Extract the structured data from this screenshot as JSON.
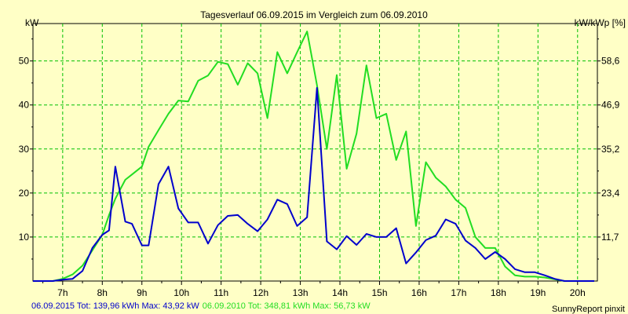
{
  "title": "Tagesverlauf 06.09.2015 im Vergleich zum 06.09.2010",
  "left_unit": "kW",
  "right_unit": "kW/kWp [%]",
  "footer": {
    "blue_text": "06.09.2015 Tot: 139,96 kWh Max: 43,92 kW",
    "green_text": "06.09.2010 Tot: 348,81 kWh Max: 56,73 kW",
    "credit": "SunnyReport pinxit"
  },
  "colors": {
    "background": "#ffffc6",
    "grid": "#00c000",
    "series_2015": "#0000cc",
    "series_2010": "#22dd22"
  },
  "chart_data": {
    "type": "line",
    "x_unit": "hour",
    "xlim": [
      6.25,
      20.5
    ],
    "ylim": [
      0,
      58.5
    ],
    "x_ticks": [
      7,
      8,
      9,
      10,
      11,
      12,
      13,
      14,
      15,
      16,
      17,
      18,
      19,
      20
    ],
    "x_tick_labels": [
      "7h",
      "8h",
      "9h",
      "10h",
      "11h",
      "12h",
      "13h",
      "14h",
      "15h",
      "16h",
      "17h",
      "18h",
      "19h",
      "20h"
    ],
    "y_ticks": [
      10,
      20,
      30,
      40,
      50
    ],
    "y_tick_labels": [
      "10",
      "20",
      "30",
      "40",
      "50"
    ],
    "y2_ticks": [
      10,
      20,
      30,
      40,
      50
    ],
    "y2_tick_labels": [
      "11,7",
      "23,4",
      "35,2",
      "46,9",
      "58,6"
    ],
    "grid": true,
    "series": [
      {
        "name": "06.09.2015",
        "x": [
          6.25,
          6.75,
          7.0,
          7.25,
          7.5,
          7.75,
          8.0,
          8.17,
          8.33,
          8.58,
          8.75,
          9.0,
          9.17,
          9.42,
          9.67,
          9.92,
          10.17,
          10.42,
          10.67,
          10.92,
          11.17,
          11.42,
          11.67,
          11.92,
          12.17,
          12.42,
          12.67,
          12.92,
          13.17,
          13.42,
          13.67,
          13.92,
          14.17,
          14.42,
          14.67,
          14.92,
          15.17,
          15.42,
          15.67,
          15.92,
          16.17,
          16.42,
          16.67,
          16.92,
          17.17,
          17.42,
          17.67,
          17.92,
          18.17,
          18.42,
          18.67,
          18.92,
          19.17,
          19.42,
          19.67,
          19.92,
          20.17,
          20.42
        ],
        "y": [
          0,
          0,
          0.3,
          0.5,
          2.3,
          7.5,
          10.5,
          11.5,
          26,
          13.5,
          13,
          8.1,
          8.1,
          22,
          26,
          16.5,
          13.3,
          13.3,
          8.5,
          12.7,
          14.8,
          15,
          13,
          11.3,
          14,
          18.5,
          17.5,
          12.5,
          14.5,
          43.9,
          9,
          7.2,
          10.2,
          8.2,
          10.7,
          10,
          10,
          12,
          4,
          6.5,
          9.3,
          10.3,
          14,
          13,
          9.2,
          7.5,
          5,
          6.6,
          5,
          2.7,
          2,
          2,
          1.3,
          0.5,
          0,
          0,
          0,
          0
        ]
      },
      {
        "name": "06.09.2010",
        "x": [
          6.25,
          6.75,
          7.0,
          7.25,
          7.5,
          7.75,
          8.0,
          8.17,
          8.33,
          8.58,
          8.75,
          9.0,
          9.17,
          9.42,
          9.67,
          9.92,
          10.17,
          10.42,
          10.67,
          10.92,
          11.17,
          11.42,
          11.67,
          11.92,
          12.17,
          12.42,
          12.67,
          12.92,
          13.17,
          13.42,
          13.67,
          13.92,
          14.17,
          14.42,
          14.67,
          14.92,
          15.17,
          15.42,
          15.67,
          15.92,
          16.17,
          16.42,
          16.67,
          16.92,
          17.17,
          17.42,
          17.67,
          17.92,
          18.17,
          18.42,
          18.67,
          18.92,
          19.17,
          19.42,
          19.67,
          19.92,
          20.17,
          20.42
        ],
        "y": [
          0,
          0,
          0.5,
          1.5,
          3.5,
          7,
          10.5,
          15,
          18.7,
          23,
          24.2,
          26,
          30.5,
          34.3,
          38,
          41,
          40.8,
          45.5,
          46.7,
          49.8,
          49.3,
          44.6,
          49.5,
          47.2,
          37,
          52,
          47.2,
          52,
          56.7,
          44.5,
          30,
          46.8,
          25.5,
          33.5,
          49,
          37,
          38,
          27.5,
          34,
          12.5,
          27,
          23.5,
          21.5,
          18.5,
          16.6,
          10,
          7.5,
          7.5,
          3.3,
          1.3,
          1,
          1,
          0.8,
          0.4,
          0,
          0,
          0,
          0
        ]
      }
    ]
  }
}
